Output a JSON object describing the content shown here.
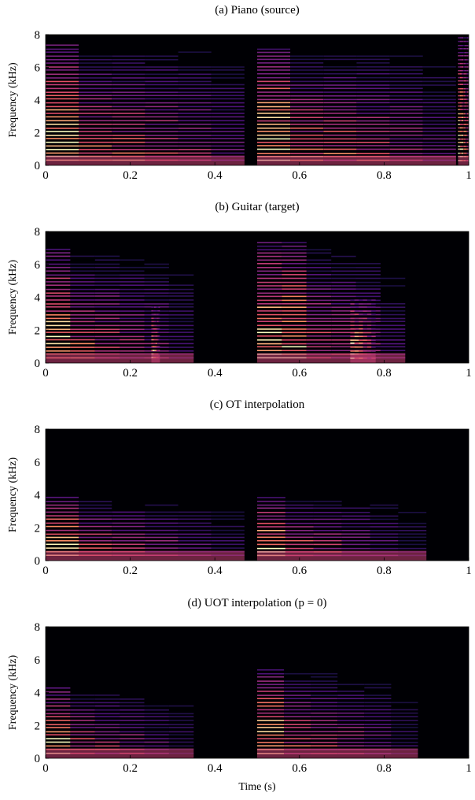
{
  "chart_data": [
    {
      "type": "heatmap",
      "title": "(a) Piano (source)",
      "ylabel": "Frequency (kHz)",
      "xlabel": "",
      "xlim": [
        0,
        1
      ],
      "ylim": [
        0,
        8
      ],
      "xticks": [
        0,
        0.2,
        0.4,
        0.6,
        0.8,
        1
      ],
      "xtick_labels": [
        "0",
        "0.2",
        "0.4",
        "0.6",
        "0.8",
        "1"
      ],
      "yticks": [
        0,
        2,
        4,
        6,
        8
      ],
      "ytick_labels": [
        "0",
        "2",
        "4",
        "6",
        "8"
      ],
      "colormap": "magma",
      "notes": [
        {
          "t0": 0.0,
          "t1": 0.47,
          "fmax": 7.5,
          "bright_until": 0.05,
          "decay": 0.55
        },
        {
          "t0": 0.5,
          "t1": 0.97,
          "fmax": 7.3,
          "bright_until": 0.55,
          "decay": 0.55
        },
        {
          "t0": 0.975,
          "t1": 1.0,
          "fmax": 7.8,
          "bright_until": 1.0,
          "decay": 0.45
        }
      ]
    },
    {
      "type": "heatmap",
      "title": "(b) Guitar (target)",
      "ylabel": "Frequency (kHz)",
      "xlabel": "",
      "xlim": [
        0,
        1
      ],
      "ylim": [
        0,
        8
      ],
      "xticks": [
        0,
        0.2,
        0.4,
        0.6,
        0.8,
        1
      ],
      "xtick_labels": [
        "0",
        "0.2",
        "0.4",
        "0.6",
        "0.8",
        "1"
      ],
      "yticks": [
        0,
        2,
        4,
        6,
        8
      ],
      "ytick_labels": [
        "0",
        "2",
        "4",
        "6",
        "8"
      ],
      "colormap": "magma",
      "notes": [
        {
          "t0": 0.0,
          "t1": 0.35,
          "fmax": 7.0,
          "bright_until": 0.05,
          "decay": 0.75
        },
        {
          "t0": 0.25,
          "t1": 0.27,
          "fmax": 3.5,
          "bright_until": 0.27,
          "decay": 0.8
        },
        {
          "t0": 0.5,
          "t1": 0.85,
          "fmax": 7.5,
          "bright_until": 0.56,
          "decay": 0.75
        },
        {
          "t0": 0.72,
          "t1": 0.78,
          "fmax": 4.0,
          "bright_until": 0.78,
          "decay": 0.8
        }
      ]
    },
    {
      "type": "heatmap",
      "title": "(c) OT interpolation",
      "ylabel": "Frequency (kHz)",
      "xlabel": "",
      "xlim": [
        0,
        1
      ],
      "ylim": [
        0,
        8
      ],
      "xticks": [
        0,
        0.2,
        0.4,
        0.6,
        0.8,
        1
      ],
      "xtick_labels": [
        "0",
        "0.2",
        "0.4",
        "0.6",
        "0.8",
        "1"
      ],
      "yticks": [
        0,
        2,
        4,
        6,
        8
      ],
      "ytick_labels": [
        "0",
        "2",
        "4",
        "6",
        "8"
      ],
      "colormap": "magma",
      "notes": [
        {
          "t0": 0.0,
          "t1": 0.47,
          "fmax": 4.0,
          "bright_until": 0.05,
          "decay": 0.9
        },
        {
          "t0": 0.5,
          "t1": 0.9,
          "fmax": 4.0,
          "bright_until": 0.56,
          "decay": 0.9
        }
      ]
    },
    {
      "type": "heatmap",
      "title": "(d) UOT interpolation (p = 0)",
      "ylabel": "Frequency (kHz)",
      "xlabel": "Time (s)",
      "xlim": [
        0,
        1
      ],
      "ylim": [
        0,
        8
      ],
      "xticks": [
        0,
        0.2,
        0.4,
        0.6,
        0.8,
        1
      ],
      "xtick_labels": [
        "0",
        "0.2",
        "0.4",
        "0.6",
        "0.8",
        "1"
      ],
      "yticks": [
        0,
        2,
        4,
        6,
        8
      ],
      "ytick_labels": [
        "0",
        "2",
        "4",
        "6",
        "8"
      ],
      "colormap": "magma",
      "notes": [
        {
          "t0": 0.0,
          "t1": 0.35,
          "fmax": 4.3,
          "bright_until": 0.05,
          "decay": 0.85
        },
        {
          "t0": 0.5,
          "t1": 0.88,
          "fmax": 5.5,
          "bright_until": 0.56,
          "decay": 0.85
        }
      ]
    }
  ]
}
